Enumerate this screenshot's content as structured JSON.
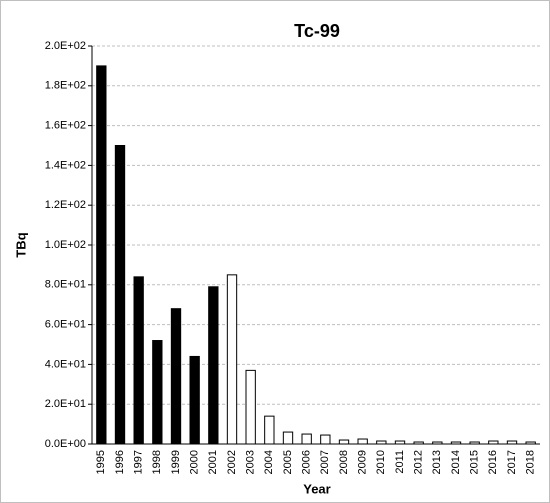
{
  "chart_data": {
    "type": "bar",
    "title": "Tc-99",
    "xlabel": "Year",
    "ylabel": "TBq",
    "categories": [
      "1995",
      "1996",
      "1997",
      "1998",
      "1999",
      "2000",
      "2001",
      "2002",
      "2003",
      "2004",
      "2005",
      "2006",
      "2007",
      "2008",
      "2009",
      "2010",
      "2011",
      "2012",
      "2013",
      "2014",
      "2015",
      "2016",
      "2017",
      "2018"
    ],
    "values": [
      190,
      150,
      84,
      52,
      68,
      44,
      79,
      85,
      37,
      14,
      6,
      5,
      4.5,
      2,
      2.5,
      1.5,
      1.5,
      1,
      1,
      1,
      1,
      1.5,
      1.5,
      1
    ],
    "colors": [
      "#000000",
      "#000000",
      "#000000",
      "#000000",
      "#000000",
      "#000000",
      "#000000",
      "#ffffff",
      "#ffffff",
      "#ffffff",
      "#ffffff",
      "#ffffff",
      "#ffffff",
      "#ffffff",
      "#ffffff",
      "#ffffff",
      "#ffffff",
      "#ffffff",
      "#ffffff",
      "#ffffff",
      "#ffffff",
      "#ffffff",
      "#ffffff",
      "#ffffff"
    ],
    "edgecolor": "#000000",
    "ylim": [
      0,
      200
    ],
    "yticks": [
      {
        "value": 0,
        "label": "0.0E+00"
      },
      {
        "value": 20,
        "label": "2.0E+01"
      },
      {
        "value": 40,
        "label": "4.0E+01"
      },
      {
        "value": 60,
        "label": "6.0E+01"
      },
      {
        "value": 80,
        "label": "8.0E+01"
      },
      {
        "value": 100,
        "label": "1.0E+02"
      },
      {
        "value": 120,
        "label": "1.2E+02"
      },
      {
        "value": 140,
        "label": "1.4E+02"
      },
      {
        "value": 160,
        "label": "1.6E+02"
      },
      {
        "value": 180,
        "label": "1.8E+02"
      },
      {
        "value": 200,
        "label": "2.0E+02"
      }
    ],
    "grid": true
  }
}
